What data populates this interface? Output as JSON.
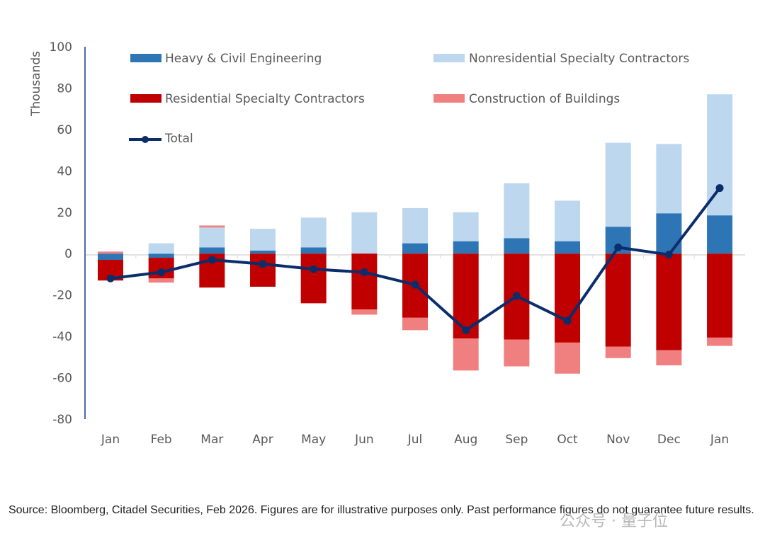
{
  "chart_data": {
    "type": "bar",
    "stacked": true,
    "ylabel": "Thousands",
    "ylim": [
      -80,
      100
    ],
    "yticks": [
      100,
      80,
      60,
      40,
      20,
      0,
      -20,
      -40,
      -60,
      -80
    ],
    "categories": [
      "Jan",
      "Feb",
      "Mar",
      "Apr",
      "May",
      "Jun",
      "Jul",
      "Aug",
      "Sep",
      "Oct",
      "Nov",
      "Dec",
      "Jan"
    ],
    "series": [
      {
        "name": "Heavy & Civil Engineering",
        "color": "#2e75b6",
        "values": [
          -3,
          -2,
          3,
          1.5,
          3,
          0,
          5,
          6,
          7.5,
          6,
          13,
          19.5,
          18.5
        ]
      },
      {
        "name": "Nonresidential Specialty Contractors",
        "color": "#bdd7ee",
        "values": [
          0,
          5,
          9.6,
          10.5,
          14.4,
          20,
          17,
          14,
          26.5,
          19.6,
          40.6,
          33.5,
          58.5
        ]
      },
      {
        "name": "Residential Specialty Contractors",
        "color": "#c00000",
        "values": [
          -10,
          -10,
          -16.4,
          -16,
          -24,
          -27,
          -31,
          -41,
          -41.5,
          -43,
          -45,
          -46.7,
          -40.6
        ]
      },
      {
        "name": "Construction of Buildings",
        "color": "#f08080",
        "values": [
          1,
          -2,
          1,
          0,
          0,
          -2.5,
          -6,
          -15.5,
          -13,
          -15,
          -5.5,
          -7.3,
          -4
        ]
      }
    ],
    "line": {
      "name": "Total",
      "color": "#0b2e6b",
      "values": [
        -12,
        -9,
        -3,
        -5,
        -7.5,
        -9,
        -15,
        -37,
        -20.5,
        -32.5,
        3,
        -0.5,
        31.7
      ]
    },
    "legend_position": "top"
  },
  "legend": [
    "Heavy & Civil Engineering",
    "Nonresidential Specialty Contractors",
    "Residential Specialty Contractors",
    "Construction of Buildings",
    "Total"
  ],
  "source": "Source: Bloomberg, Citadel Securities, Feb 2026. Figures are for illustrative purposes only. Past performance figures do not guarantee future results.",
  "watermark": "公众号 · 量子位"
}
